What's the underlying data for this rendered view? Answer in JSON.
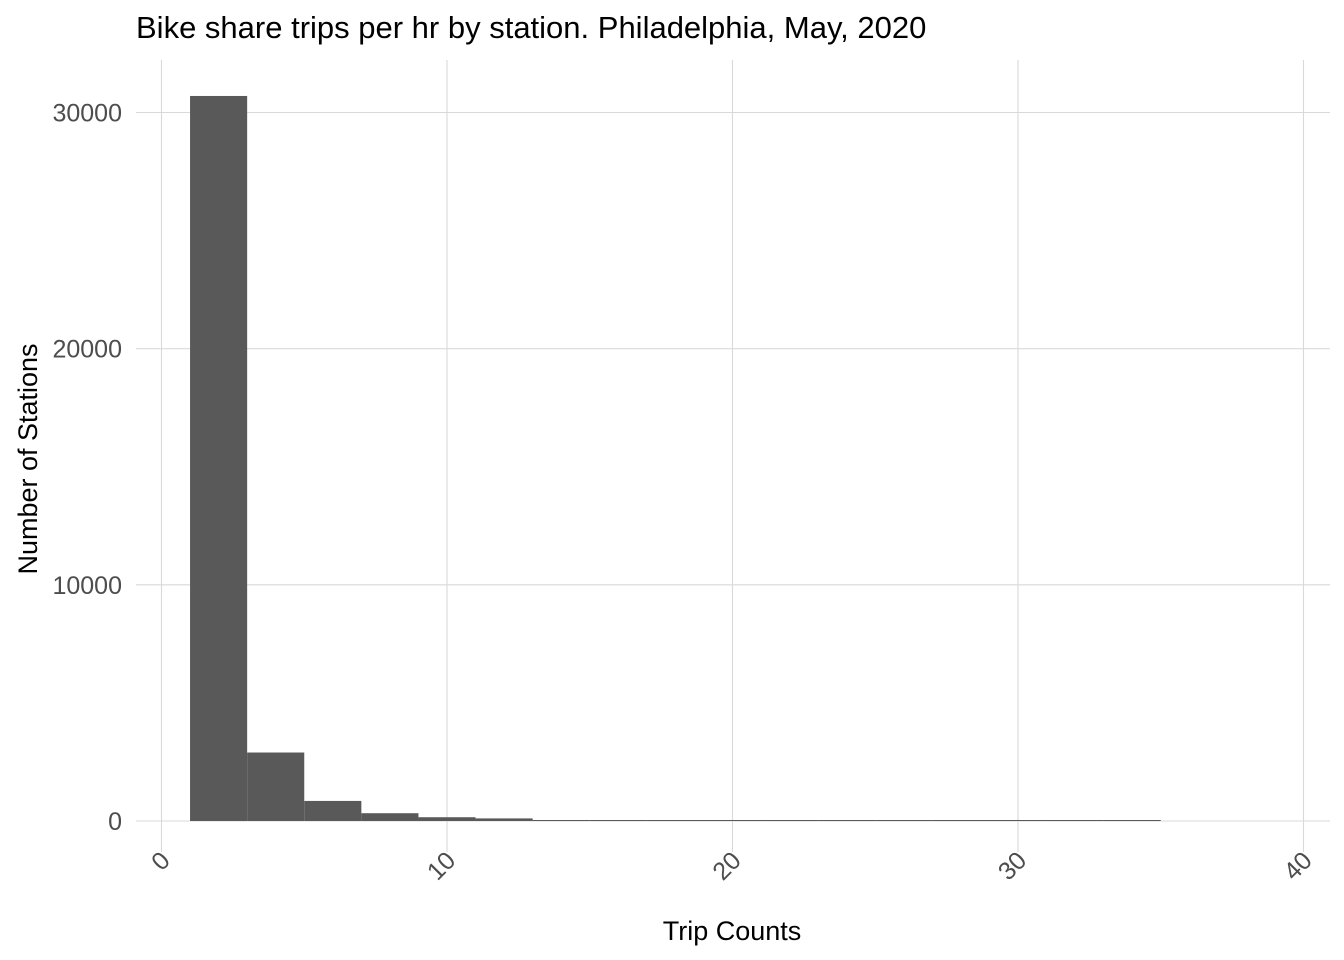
{
  "chart_data": {
    "type": "histogram",
    "title": "Bike share trips per hr by station. Philadelphia, May, 2020",
    "xlabel": "Trip Counts",
    "ylabel": "Number of Stations",
    "xlim": [
      0,
      40
    ],
    "ylim": [
      0,
      31500
    ],
    "x_ticks": [
      0,
      10,
      20,
      30,
      40
    ],
    "x_tick_labels": [
      "0",
      "10",
      "20",
      "30",
      "40"
    ],
    "y_ticks": [
      0,
      10000,
      20000,
      30000
    ],
    "y_tick_labels": [
      "0",
      "10000",
      "20000",
      "30000"
    ],
    "grid": true,
    "legend": "none",
    "bar_color": "#595959",
    "bins": [
      {
        "x0": 1,
        "x1": 3,
        "count": 30700
      },
      {
        "x0": 3,
        "x1": 5,
        "count": 2900
      },
      {
        "x0": 5,
        "x1": 7,
        "count": 850
      },
      {
        "x0": 7,
        "x1": 9,
        "count": 330
      },
      {
        "x0": 9,
        "x1": 11,
        "count": 160
      },
      {
        "x0": 11,
        "x1": 13,
        "count": 110
      },
      {
        "x0": 13,
        "x1": 15,
        "count": 40
      },
      {
        "x0": 15,
        "x1": 17,
        "count": 25
      },
      {
        "x0": 17,
        "x1": 19,
        "count": 15
      },
      {
        "x0": 19,
        "x1": 21,
        "count": 10
      },
      {
        "x0": 21,
        "x1": 23,
        "count": 8
      },
      {
        "x0": 23,
        "x1": 25,
        "count": 5
      },
      {
        "x0": 25,
        "x1": 27,
        "count": 4
      },
      {
        "x0": 27,
        "x1": 29,
        "count": 3
      },
      {
        "x0": 29,
        "x1": 31,
        "count": 2
      },
      {
        "x0": 31,
        "x1": 33,
        "count": 2
      },
      {
        "x0": 33,
        "x1": 35,
        "count": 1
      }
    ]
  }
}
